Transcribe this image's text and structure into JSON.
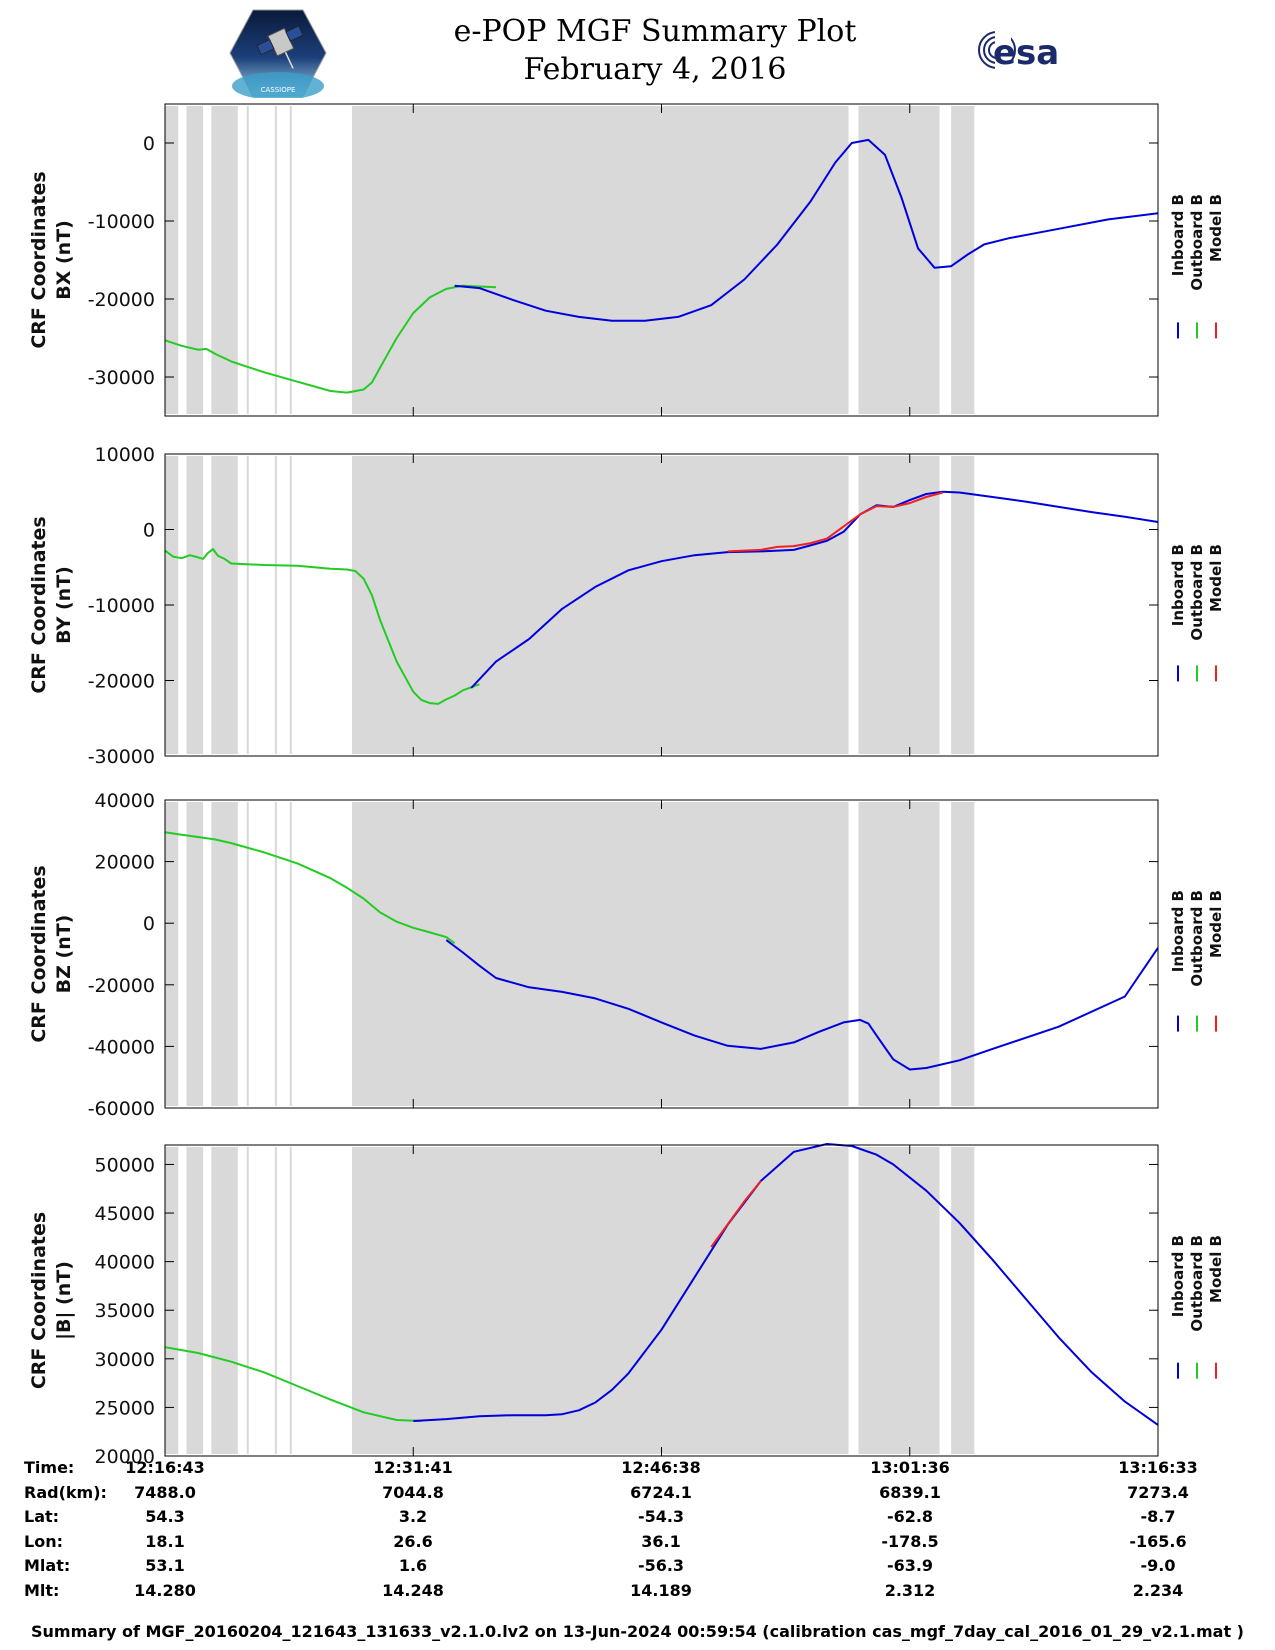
{
  "header": {
    "title_line1": "e-POP MGF Summary Plot",
    "title_line2": "February 4, 2016",
    "logo_left": "cassiope-satellite-logo",
    "logo_right_text": "esa"
  },
  "colors": {
    "inboard": "#0000dd",
    "outboard": "#22cc22",
    "model": "#ee2222",
    "shade": "#d9d9d9",
    "axis": "#000000"
  },
  "legend": [
    "Inboard B",
    "Outboard B",
    "Model B"
  ],
  "chart_data": [
    {
      "type": "line",
      "ylabel_line1": "CRF Coordinates",
      "ylabel_line2": "BX (nT)",
      "ylim": [
        -35000,
        5000
      ],
      "yticks": [
        0,
        -10000,
        -20000,
        -30000
      ],
      "xlim": [
        0,
        60
      ],
      "shaded_intervals": [
        [
          0,
          0.8
        ],
        [
          1.3,
          2.3
        ],
        [
          2.8,
          4.4
        ],
        [
          11.3,
          41.3
        ],
        [
          41.9,
          46.8
        ],
        [
          47.5,
          48.9
        ]
      ],
      "series": [
        {
          "name": "Outboard B",
          "color": "outboard",
          "x": [
            0,
            1,
            2,
            2.5,
            3,
            4,
            5,
            6,
            8,
            10,
            11,
            12,
            12.5,
            13,
            14,
            15,
            16,
            17,
            18,
            19,
            20
          ],
          "y": [
            -25300,
            -26000,
            -26500,
            -26400,
            -27000,
            -28000,
            -28700,
            -29400,
            -30600,
            -31800,
            -32000,
            -31600,
            -30700,
            -28800,
            -25000,
            -21800,
            -19800,
            -18700,
            -18300,
            -18400,
            -18500
          ]
        },
        {
          "name": "Inboard B",
          "color": "inboard",
          "x": [
            17.5,
            19,
            21,
            23,
            25,
            27,
            29,
            31,
            33,
            35,
            37,
            39,
            40.5,
            41.5,
            42.5,
            43.5,
            44.5,
            45.5,
            46.5,
            47.5,
            48.5,
            49.5,
            51,
            54,
            57,
            60
          ],
          "y": [
            -18300,
            -18600,
            -20100,
            -21500,
            -22300,
            -22800,
            -22800,
            -22300,
            -20800,
            -17500,
            -13000,
            -7500,
            -2500,
            0,
            400,
            -1500,
            -7000,
            -13500,
            -16000,
            -15800,
            -14300,
            -13000,
            -12200,
            -11000,
            -9800,
            -9000
          ]
        }
      ]
    },
    {
      "type": "line",
      "ylabel_line1": "CRF Coordinates",
      "ylabel_line2": "BY (nT)",
      "ylim": [
        -30000,
        10000
      ],
      "yticks": [
        10000,
        0,
        -10000,
        -20000,
        -30000
      ],
      "xlim": [
        0,
        60
      ],
      "shaded_intervals": [
        [
          0,
          0.8
        ],
        [
          1.3,
          2.3
        ],
        [
          2.8,
          4.4
        ],
        [
          11.3,
          41.3
        ],
        [
          41.9,
          46.8
        ],
        [
          47.5,
          48.9
        ]
      ],
      "series": [
        {
          "name": "Outboard B",
          "color": "outboard",
          "x": [
            0,
            0.5,
            1,
            1.5,
            2,
            2.3,
            2.6,
            2.9,
            3.2,
            3.6,
            4,
            6,
            8,
            10,
            11,
            11.5,
            12,
            12.5,
            13,
            14,
            15,
            15.5,
            16,
            16.5,
            17,
            17.5,
            18,
            19
          ],
          "y": [
            -2800,
            -3600,
            -3800,
            -3400,
            -3700,
            -3900,
            -3100,
            -2600,
            -3500,
            -3900,
            -4500,
            -4700,
            -4800,
            -5200,
            -5300,
            -5500,
            -6500,
            -8700,
            -12000,
            -17500,
            -21500,
            -22600,
            -23000,
            -23100,
            -22500,
            -22000,
            -21300,
            -20500
          ]
        },
        {
          "name": "Inboard B",
          "color": "inboard",
          "x": [
            18.5,
            20,
            22,
            24,
            26,
            28,
            30,
            32,
            34,
            36,
            38,
            39,
            40,
            41,
            42,
            43,
            44,
            45,
            46,
            47,
            48,
            50,
            52,
            54,
            56,
            58,
            60
          ],
          "y": [
            -21000,
            -17500,
            -14500,
            -10500,
            -7600,
            -5400,
            -4200,
            -3400,
            -3000,
            -2900,
            -2700,
            -2100,
            -1500,
            -300,
            2000,
            3200,
            3000,
            3900,
            4700,
            5000,
            4900,
            4300,
            3700,
            3000,
            2300,
            1700,
            1000
          ]
        },
        {
          "name": "Model B",
          "color": "model",
          "x": [
            34,
            36,
            37,
            38,
            39,
            40,
            42,
            43,
            44,
            45,
            46,
            47
          ],
          "y": [
            -2900,
            -2700,
            -2300,
            -2200,
            -1800,
            -1200,
            2000,
            3100,
            3000,
            3500,
            4300,
            4900
          ]
        }
      ]
    },
    {
      "type": "line",
      "ylabel_line1": "CRF Coordinates",
      "ylabel_line2": "BZ (nT)",
      "ylim": [
        -60000,
        40000
      ],
      "yticks": [
        40000,
        20000,
        0,
        -20000,
        -40000,
        -60000
      ],
      "xlim": [
        0,
        60
      ],
      "shaded_intervals": [
        [
          0,
          0.8
        ],
        [
          1.3,
          2.3
        ],
        [
          2.8,
          4.4
        ],
        [
          11.3,
          41.3
        ],
        [
          41.9,
          46.8
        ],
        [
          47.5,
          48.9
        ]
      ],
      "series": [
        {
          "name": "Outboard B",
          "color": "outboard",
          "x": [
            0,
            1,
            2,
            3,
            4,
            6,
            8,
            10,
            11,
            12,
            13,
            14,
            15,
            16,
            17,
            17.5
          ],
          "y": [
            29500,
            28700,
            28000,
            27200,
            26000,
            23000,
            19400,
            14600,
            11500,
            8000,
            3500,
            500,
            -1500,
            -3000,
            -4500,
            -6500
          ]
        },
        {
          "name": "Inboard B",
          "color": "inboard",
          "x": [
            17,
            18,
            19,
            20,
            22,
            24,
            26,
            28,
            30,
            32,
            34,
            36,
            38,
            39.5,
            41,
            42,
            42.5,
            43,
            44,
            45,
            46,
            48,
            50,
            54,
            58,
            60
          ],
          "y": [
            -5500,
            -9500,
            -13800,
            -17800,
            -20800,
            -22300,
            -24400,
            -27800,
            -32200,
            -36500,
            -39800,
            -40800,
            -38700,
            -35300,
            -32200,
            -31400,
            -32600,
            -36500,
            -44200,
            -47500,
            -47000,
            -44500,
            -40800,
            -33600,
            -23800,
            -8000
          ]
        }
      ]
    },
    {
      "type": "line",
      "ylabel_line1": "CRF Coordinates",
      "ylabel_line2": "|B| (nT)",
      "ylim": [
        20000,
        52000
      ],
      "yticks": [
        50000,
        45000,
        40000,
        35000,
        30000,
        25000,
        20000
      ],
      "xlim": [
        0,
        60
      ],
      "shaded_intervals": [
        [
          0,
          0.8
        ],
        [
          1.3,
          2.3
        ],
        [
          2.8,
          4.4
        ],
        [
          11.3,
          41.3
        ],
        [
          41.9,
          46.8
        ],
        [
          47.5,
          48.9
        ]
      ],
      "series": [
        {
          "name": "Outboard B",
          "color": "outboard",
          "x": [
            0,
            2,
            4,
            6,
            8,
            10,
            12,
            14,
            15.5
          ],
          "y": [
            31200,
            30600,
            29700,
            28600,
            27200,
            25800,
            24500,
            23700,
            23600
          ]
        },
        {
          "name": "Inboard B",
          "color": "inboard",
          "x": [
            15,
            17,
            19,
            21,
            23,
            24,
            25,
            26,
            27,
            28,
            30,
            32,
            34,
            36,
            38,
            40,
            41.5,
            43,
            44,
            46,
            48,
            50,
            52,
            54,
            56,
            58,
            60
          ],
          "y": [
            23600,
            23800,
            24100,
            24200,
            24200,
            24300,
            24700,
            25500,
            26800,
            28500,
            33000,
            38400,
            43800,
            48300,
            51300,
            52100,
            51900,
            51000,
            50000,
            47300,
            44000,
            40200,
            36200,
            32200,
            28600,
            25600,
            23200
          ]
        },
        {
          "name": "Model B",
          "color": "model",
          "x": [
            33,
            35,
            36
          ],
          "y": [
            41500,
            46200,
            48300
          ]
        }
      ]
    }
  ],
  "ephemeris": {
    "keys": [
      "Time:",
      "Rad(km):",
      "Lat:",
      "Lon:",
      "Mlat:",
      "Mlt:"
    ],
    "columns": [
      [
        "12:16:43",
        "7488.0",
        "54.3",
        "18.1",
        "53.1",
        "14.280"
      ],
      [
        "12:31:41",
        "7044.8",
        "3.2",
        "26.6",
        "1.6",
        "14.248"
      ],
      [
        "12:46:38",
        "6724.1",
        "-54.3",
        "36.1",
        "-56.3",
        "14.189"
      ],
      [
        "13:01:36",
        "6839.1",
        "-62.8",
        "-178.5",
        "-63.9",
        "2.312"
      ],
      [
        "13:16:33",
        "7273.4",
        "-8.7",
        "-165.6",
        "-9.0",
        "2.234"
      ]
    ]
  },
  "footer": "Summary of MGF_20160204_121643_131633_v2.1.0.lv2 on 13-Jun-2024 00:59:54 (calibration cas_mgf_7day_cal_2016_01_29_v2.1.mat )"
}
